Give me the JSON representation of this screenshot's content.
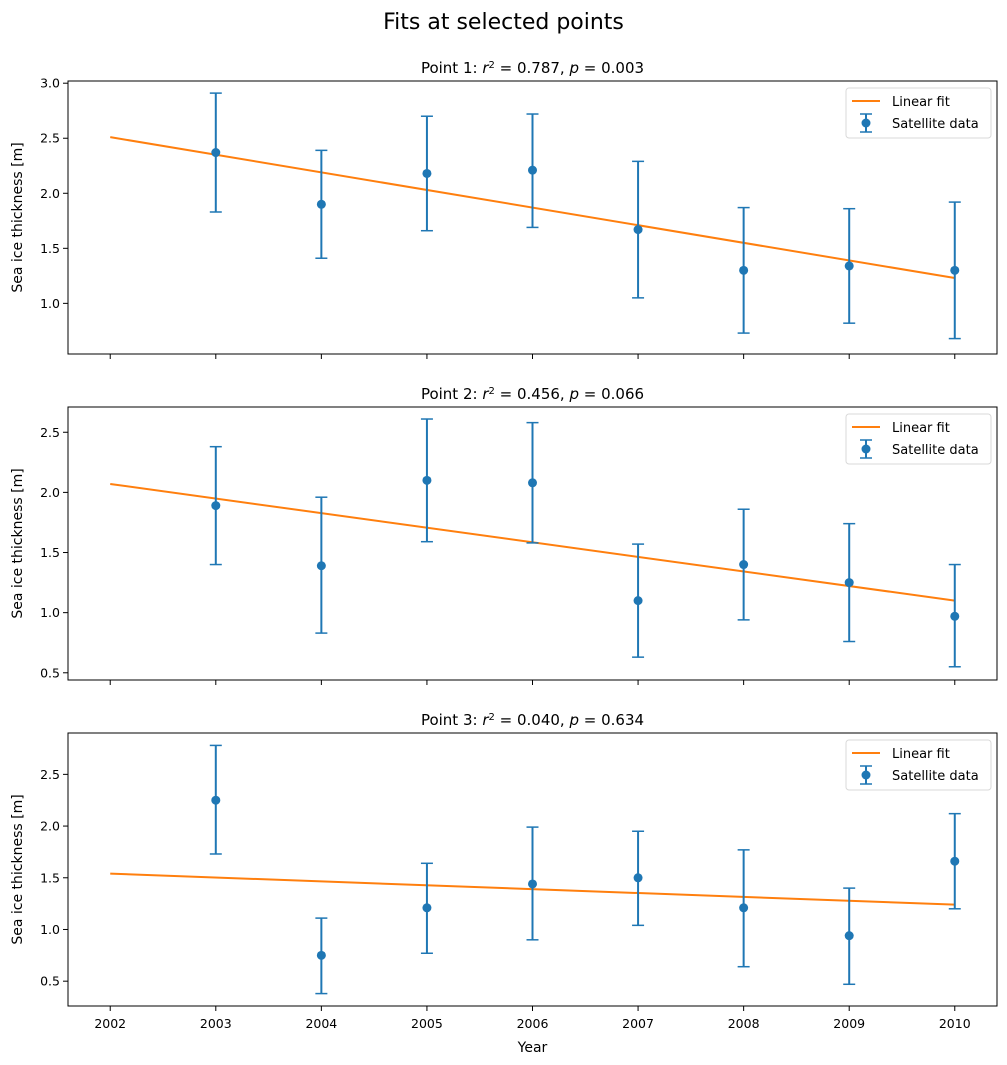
{
  "figure": {
    "suptitle": "Fits at selected points",
    "xlabel": "Year"
  },
  "colors": {
    "data": "#1f77b4",
    "fit": "#ff7f0e",
    "axis": "#000000",
    "legend_border": "#d9d9d9"
  },
  "chart_data": [
    {
      "type": "scatter",
      "title_prefix": "Point 1: ",
      "r2_label": "r",
      "r2_value": "0.787",
      "p_label": "p",
      "p_value": "0.003",
      "ylabel": "Sea ice thickness [m]",
      "xlim": [
        2001.6,
        2010.4
      ],
      "ylim": [
        0.54,
        3.02
      ],
      "yticks": [
        1.0,
        1.5,
        2.0,
        2.5,
        3.0
      ],
      "ytick_labels": [
        "1.0",
        "1.5",
        "2.0",
        "2.5",
        "3.0"
      ],
      "xticks": [
        2002,
        2003,
        2004,
        2005,
        2006,
        2007,
        2008,
        2009,
        2010
      ],
      "show_xtick_labels": false,
      "legend_fit": "Linear fit",
      "legend_data": "Satellite data",
      "x": [
        2003,
        2004,
        2005,
        2006,
        2007,
        2008,
        2009,
        2010
      ],
      "y": [
        2.37,
        1.9,
        2.18,
        2.21,
        1.67,
        1.3,
        1.34,
        1.3
      ],
      "yerr_low": [
        1.83,
        1.41,
        1.66,
        1.69,
        1.05,
        0.73,
        0.82,
        0.68
      ],
      "yerr_high": [
        2.91,
        2.39,
        2.7,
        2.72,
        2.29,
        1.87,
        1.86,
        1.92
      ],
      "fit_x": [
        2002,
        2010
      ],
      "fit_y": [
        2.51,
        1.23
      ]
    },
    {
      "type": "scatter",
      "title_prefix": "Point 2: ",
      "r2_label": "r",
      "r2_value": "0.456",
      "p_label": "p",
      "p_value": "0.066",
      "ylabel": "Sea ice thickness [m]",
      "xlim": [
        2001.6,
        2010.4
      ],
      "ylim": [
        0.44,
        2.71
      ],
      "yticks": [
        0.5,
        1.0,
        1.5,
        2.0,
        2.5
      ],
      "ytick_labels": [
        "0.5",
        "1.0",
        "1.5",
        "2.0",
        "2.5"
      ],
      "xticks": [
        2002,
        2003,
        2004,
        2005,
        2006,
        2007,
        2008,
        2009,
        2010
      ],
      "show_xtick_labels": false,
      "legend_fit": "Linear fit",
      "legend_data": "Satellite data",
      "x": [
        2003,
        2004,
        2005,
        2006,
        2007,
        2008,
        2009,
        2010
      ],
      "y": [
        1.89,
        1.39,
        2.1,
        2.08,
        1.1,
        1.4,
        1.25,
        0.97
      ],
      "yerr_low": [
        1.4,
        0.83,
        1.59,
        1.58,
        0.63,
        0.94,
        0.76,
        0.55
      ],
      "yerr_high": [
        2.38,
        1.96,
        2.61,
        2.58,
        1.57,
        1.86,
        1.74,
        1.4
      ],
      "fit_x": [
        2002,
        2010
      ],
      "fit_y": [
        2.07,
        1.1
      ]
    },
    {
      "type": "scatter",
      "title_prefix": "Point 3: ",
      "r2_label": "r",
      "r2_value": "0.040",
      "p_label": "p",
      "p_value": "0.634",
      "ylabel": "Sea ice thickness [m]",
      "xlim": [
        2001.6,
        2010.4
      ],
      "ylim": [
        0.26,
        2.9
      ],
      "yticks": [
        0.5,
        1.0,
        1.5,
        2.0,
        2.5
      ],
      "ytick_labels": [
        "0.5",
        "1.0",
        "1.5",
        "2.0",
        "2.5"
      ],
      "xticks": [
        2002,
        2003,
        2004,
        2005,
        2006,
        2007,
        2008,
        2009,
        2010
      ],
      "xtick_labels": [
        "2002",
        "2003",
        "2004",
        "2005",
        "2006",
        "2007",
        "2008",
        "2009",
        "2010"
      ],
      "show_xtick_labels": true,
      "legend_fit": "Linear fit",
      "legend_data": "Satellite data",
      "x": [
        2003,
        2004,
        2005,
        2006,
        2007,
        2008,
        2009,
        2010
      ],
      "y": [
        2.25,
        0.75,
        1.21,
        1.44,
        1.5,
        1.21,
        0.94,
        1.66
      ],
      "yerr_low": [
        1.73,
        0.38,
        0.77,
        0.9,
        1.04,
        0.64,
        0.47,
        1.2
      ],
      "yerr_high": [
        2.78,
        1.11,
        1.64,
        1.99,
        1.95,
        1.77,
        1.4,
        2.12
      ],
      "fit_x": [
        2002,
        2010
      ],
      "fit_y": [
        1.54,
        1.24
      ]
    }
  ]
}
